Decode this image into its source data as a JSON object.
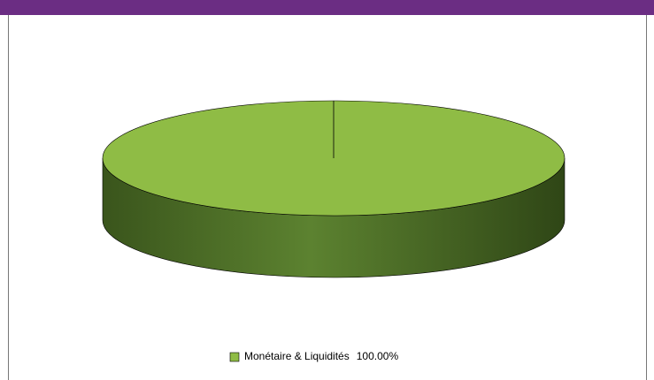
{
  "chart_data": {
    "type": "pie",
    "categories": [
      "Monétaire & Liquidités"
    ],
    "values": [
      100
    ],
    "value_labels": [
      "100.00%"
    ],
    "colors": [
      "#8fbc45"
    ],
    "legend": "bottom"
  }
}
